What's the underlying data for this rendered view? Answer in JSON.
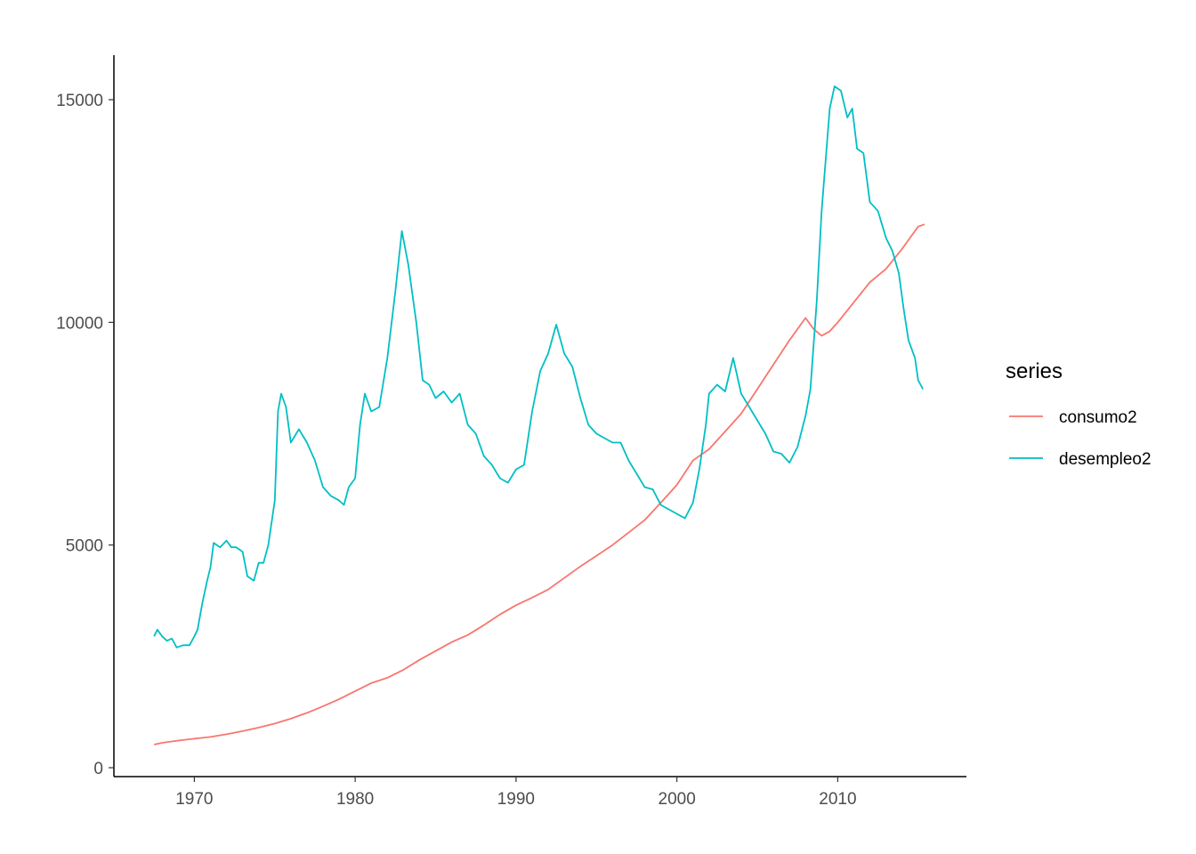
{
  "chart_data": {
    "type": "line",
    "title": "",
    "xlabel": "",
    "ylabel": "",
    "xlim": [
      1965,
      2018
    ],
    "ylim": [
      -200,
      16000
    ],
    "grid": false,
    "legend_position": "right",
    "x_ticks": [
      1970,
      1980,
      1990,
      2000,
      2010
    ],
    "x_tick_labels": [
      "1970",
      "1980",
      "1990",
      "2000",
      "2010"
    ],
    "y_ticks": [
      0,
      5000,
      10000,
      15000
    ],
    "y_tick_labels": [
      "0",
      "5000",
      "10000",
      "15000"
    ],
    "legend": {
      "title": "series",
      "items": [
        {
          "label": "consumo2",
          "color": "#F8766D"
        },
        {
          "label": "desempleo2",
          "color": "#00BFC4"
        }
      ]
    },
    "series": [
      {
        "name": "consumo2",
        "color": "#F8766D",
        "points": [
          [
            1967.5,
            520
          ],
          [
            1968.0,
            560
          ],
          [
            1969.0,
            610
          ],
          [
            1970.0,
            650
          ],
          [
            1971.0,
            690
          ],
          [
            1972.0,
            750
          ],
          [
            1973.0,
            820
          ],
          [
            1974.0,
            900
          ],
          [
            1975.0,
            990
          ],
          [
            1976.0,
            1100
          ],
          [
            1977.0,
            1230
          ],
          [
            1978.0,
            1380
          ],
          [
            1979.0,
            1540
          ],
          [
            1980.0,
            1720
          ],
          [
            1981.0,
            1900
          ],
          [
            1982.0,
            2020
          ],
          [
            1983.0,
            2200
          ],
          [
            1984.0,
            2420
          ],
          [
            1985.0,
            2620
          ],
          [
            1986.0,
            2820
          ],
          [
            1987.0,
            2980
          ],
          [
            1988.0,
            3200
          ],
          [
            1989.0,
            3440
          ],
          [
            1990.0,
            3650
          ],
          [
            1991.0,
            3820
          ],
          [
            1992.0,
            4000
          ],
          [
            1993.0,
            4260
          ],
          [
            1994.0,
            4520
          ],
          [
            1995.0,
            4760
          ],
          [
            1996.0,
            5000
          ],
          [
            1997.0,
            5280
          ],
          [
            1998.0,
            5560
          ],
          [
            1999.0,
            5950
          ],
          [
            2000.0,
            6350
          ],
          [
            2001.0,
            6900
          ],
          [
            2002.0,
            7150
          ],
          [
            2003.0,
            7550
          ],
          [
            2004.0,
            7950
          ],
          [
            2005.0,
            8500
          ],
          [
            2006.0,
            9050
          ],
          [
            2007.0,
            9600
          ],
          [
            2008.0,
            10100
          ],
          [
            2008.5,
            9850
          ],
          [
            2009.0,
            9700
          ],
          [
            2009.5,
            9800
          ],
          [
            2010.0,
            10000
          ],
          [
            2011.0,
            10450
          ],
          [
            2012.0,
            10900
          ],
          [
            2013.0,
            11200
          ],
          [
            2014.0,
            11650
          ],
          [
            2015.0,
            12150
          ],
          [
            2015.4,
            12200
          ]
        ]
      },
      {
        "name": "desempleo2",
        "color": "#00BFC4",
        "points": [
          [
            1967.5,
            2950
          ],
          [
            1967.7,
            3100
          ],
          [
            1968.0,
            2950
          ],
          [
            1968.3,
            2850
          ],
          [
            1968.6,
            2900
          ],
          [
            1968.9,
            2700
          ],
          [
            1969.3,
            2750
          ],
          [
            1969.7,
            2750
          ],
          [
            1970.0,
            2950
          ],
          [
            1970.2,
            3100
          ],
          [
            1970.5,
            3700
          ],
          [
            1970.8,
            4200
          ],
          [
            1971.0,
            4500
          ],
          [
            1971.2,
            5050
          ],
          [
            1971.6,
            4950
          ],
          [
            1972.0,
            5100
          ],
          [
            1972.3,
            4950
          ],
          [
            1972.6,
            4950
          ],
          [
            1973.0,
            4850
          ],
          [
            1973.3,
            4300
          ],
          [
            1973.7,
            4200
          ],
          [
            1974.0,
            4600
          ],
          [
            1974.3,
            4600
          ],
          [
            1974.6,
            5000
          ],
          [
            1975.0,
            6000
          ],
          [
            1975.2,
            8000
          ],
          [
            1975.4,
            8400
          ],
          [
            1975.7,
            8100
          ],
          [
            1976.0,
            7300
          ],
          [
            1976.5,
            7600
          ],
          [
            1977.0,
            7300
          ],
          [
            1977.5,
            6900
          ],
          [
            1978.0,
            6300
          ],
          [
            1978.5,
            6100
          ],
          [
            1979.0,
            6000
          ],
          [
            1979.3,
            5900
          ],
          [
            1979.6,
            6300
          ],
          [
            1980.0,
            6500
          ],
          [
            1980.3,
            7700
          ],
          [
            1980.6,
            8400
          ],
          [
            1981.0,
            8000
          ],
          [
            1981.5,
            8100
          ],
          [
            1982.0,
            9200
          ],
          [
            1982.5,
            10700
          ],
          [
            1982.9,
            12050
          ],
          [
            1983.3,
            11300
          ],
          [
            1983.8,
            10000
          ],
          [
            1984.2,
            8700
          ],
          [
            1984.6,
            8600
          ],
          [
            1985.0,
            8300
          ],
          [
            1985.5,
            8450
          ],
          [
            1986.0,
            8200
          ],
          [
            1986.5,
            8400
          ],
          [
            1987.0,
            7700
          ],
          [
            1987.5,
            7500
          ],
          [
            1988.0,
            7000
          ],
          [
            1988.5,
            6800
          ],
          [
            1989.0,
            6500
          ],
          [
            1989.5,
            6400
          ],
          [
            1990.0,
            6700
          ],
          [
            1990.5,
            6800
          ],
          [
            1991.0,
            8000
          ],
          [
            1991.5,
            8900
          ],
          [
            1992.0,
            9300
          ],
          [
            1992.5,
            9950
          ],
          [
            1993.0,
            9300
          ],
          [
            1993.5,
            9000
          ],
          [
            1994.0,
            8300
          ],
          [
            1994.5,
            7700
          ],
          [
            1995.0,
            7500
          ],
          [
            1995.5,
            7400
          ],
          [
            1996.0,
            7300
          ],
          [
            1996.5,
            7300
          ],
          [
            1997.0,
            6900
          ],
          [
            1997.5,
            6600
          ],
          [
            1998.0,
            6300
          ],
          [
            1998.5,
            6250
          ],
          [
            1999.0,
            5900
          ],
          [
            1999.5,
            5800
          ],
          [
            2000.0,
            5700
          ],
          [
            2000.5,
            5600
          ],
          [
            2001.0,
            5950
          ],
          [
            2001.4,
            6700
          ],
          [
            2001.8,
            7700
          ],
          [
            2002.0,
            8400
          ],
          [
            2002.5,
            8600
          ],
          [
            2003.0,
            8450
          ],
          [
            2003.5,
            9200
          ],
          [
            2004.0,
            8400
          ],
          [
            2004.5,
            8100
          ],
          [
            2005.0,
            7800
          ],
          [
            2005.5,
            7500
          ],
          [
            2006.0,
            7100
          ],
          [
            2006.5,
            7050
          ],
          [
            2007.0,
            6850
          ],
          [
            2007.5,
            7200
          ],
          [
            2008.0,
            7900
          ],
          [
            2008.3,
            8500
          ],
          [
            2008.7,
            10500
          ],
          [
            2009.0,
            12500
          ],
          [
            2009.5,
            14800
          ],
          [
            2009.8,
            15300
          ],
          [
            2010.2,
            15200
          ],
          [
            2010.6,
            14600
          ],
          [
            2010.9,
            14800
          ],
          [
            2011.2,
            13900
          ],
          [
            2011.6,
            13800
          ],
          [
            2012.0,
            12700
          ],
          [
            2012.5,
            12500
          ],
          [
            2013.0,
            11900
          ],
          [
            2013.4,
            11600
          ],
          [
            2013.8,
            11100
          ],
          [
            2014.1,
            10300
          ],
          [
            2014.4,
            9600
          ],
          [
            2014.8,
            9200
          ],
          [
            2015.0,
            8700
          ],
          [
            2015.3,
            8500
          ]
        ]
      }
    ]
  }
}
